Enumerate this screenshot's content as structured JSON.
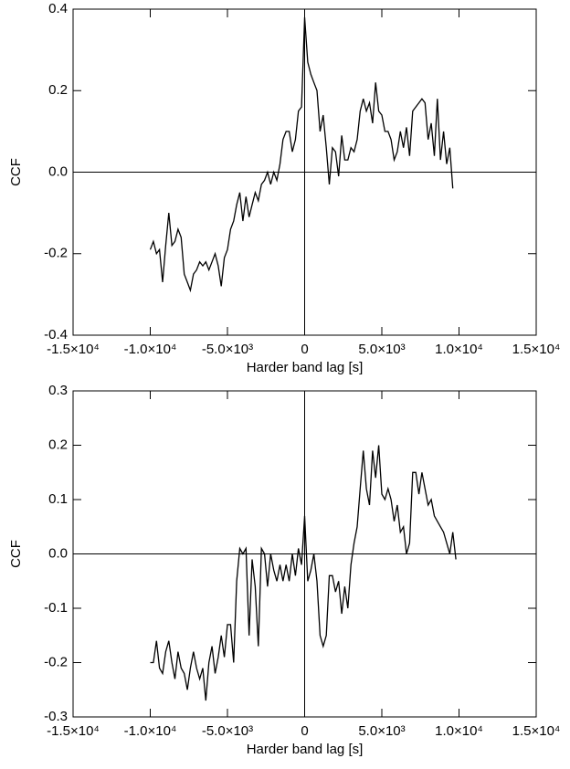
{
  "chart_data": [
    {
      "type": "line",
      "xlabel": "Harder band lag [s]",
      "ylabel": "CCF",
      "color": "#000000",
      "xlim": [
        -15000,
        15000
      ],
      "ylim": [
        -0.4,
        0.4
      ],
      "xticks": [
        {
          "value": -15000,
          "label": "-1.5×10⁴"
        },
        {
          "value": -10000,
          "label": "-1.0×10⁴"
        },
        {
          "value": -5000,
          "label": "-5.0×10³"
        },
        0,
        {
          "value": 5000,
          "label": "5.0×10³"
        },
        {
          "value": 10000,
          "label": "1.0×10⁴"
        },
        {
          "value": 15000,
          "label": "1.5×10⁴"
        }
      ],
      "yticks": [
        -0.4,
        -0.2,
        {
          "value": 0,
          "label": "0.0"
        },
        0.2,
        0.4
      ],
      "x": [
        -10000,
        -9800,
        -9600,
        -9400,
        -9200,
        -9000,
        -8800,
        -8600,
        -8400,
        -8200,
        -8000,
        -7800,
        -7600,
        -7400,
        -7200,
        -7000,
        -6800,
        -6600,
        -6400,
        -6200,
        -6000,
        -5800,
        -5600,
        -5400,
        -5200,
        -5000,
        -4800,
        -4600,
        -4400,
        -4200,
        -4000,
        -3800,
        -3600,
        -3400,
        -3200,
        -3000,
        -2800,
        -2600,
        -2400,
        -2200,
        -2000,
        -1800,
        -1600,
        -1400,
        -1200,
        -1000,
        -800,
        -600,
        -400,
        -200,
        0,
        200,
        400,
        600,
        800,
        1000,
        1200,
        1400,
        1600,
        1800,
        2000,
        2200,
        2400,
        2600,
        2800,
        3000,
        3200,
        3400,
        3600,
        3800,
        4000,
        4200,
        4400,
        4600,
        4800,
        5000,
        5200,
        5400,
        5600,
        5800,
        6000,
        6200,
        6400,
        6600,
        6800,
        7000,
        7200,
        7400,
        7600,
        7800,
        8000,
        8200,
        8400,
        8600,
        8800,
        9000,
        9200,
        9400,
        9600
      ],
      "values": [
        -0.19,
        -0.17,
        -0.2,
        -0.19,
        -0.27,
        -0.18,
        -0.1,
        -0.18,
        -0.17,
        -0.14,
        -0.16,
        -0.25,
        -0.27,
        -0.29,
        -0.25,
        -0.24,
        -0.22,
        -0.23,
        -0.22,
        -0.24,
        -0.22,
        -0.2,
        -0.23,
        -0.28,
        -0.21,
        -0.19,
        -0.14,
        -0.12,
        -0.08,
        -0.05,
        -0.12,
        -0.06,
        -0.11,
        -0.08,
        -0.05,
        -0.07,
        -0.03,
        -0.02,
        0.0,
        -0.03,
        0.0,
        -0.02,
        0.02,
        0.08,
        0.1,
        0.1,
        0.05,
        0.08,
        0.15,
        0.16,
        0.38,
        0.27,
        0.24,
        0.22,
        0.2,
        0.1,
        0.14,
        0.06,
        -0.03,
        0.06,
        0.05,
        -0.01,
        0.09,
        0.03,
        0.03,
        0.06,
        0.05,
        0.08,
        0.15,
        0.18,
        0.15,
        0.17,
        0.12,
        0.22,
        0.15,
        0.14,
        0.1,
        0.1,
        0.08,
        0.03,
        0.05,
        0.1,
        0.06,
        0.11,
        0.04,
        0.15,
        0.16,
        0.17,
        0.18,
        0.17,
        0.08,
        0.12,
        0.04,
        0.18,
        0.03,
        0.1,
        0.02,
        0.06,
        -0.04
      ]
    },
    {
      "type": "line",
      "xlabel": "Harder band lag [s]",
      "ylabel": "CCF",
      "color": "#000000",
      "xlim": [
        -15000,
        15000
      ],
      "ylim": [
        -0.3,
        0.3
      ],
      "xticks": [
        {
          "value": -15000,
          "label": "-1.5×10⁴"
        },
        {
          "value": -10000,
          "label": "-1.0×10⁴"
        },
        {
          "value": -5000,
          "label": "-5.0×10³"
        },
        0,
        {
          "value": 5000,
          "label": "5.0×10³"
        },
        {
          "value": 10000,
          "label": "1.0×10⁴"
        },
        {
          "value": 15000,
          "label": "1.5×10⁴"
        }
      ],
      "yticks": [
        -0.3,
        -0.2,
        -0.1,
        {
          "value": 0,
          "label": "0.0"
        },
        0.1,
        0.2,
        0.3
      ],
      "x": [
        -10000,
        -9800,
        -9600,
        -9400,
        -9200,
        -9000,
        -8800,
        -8600,
        -8400,
        -8200,
        -8000,
        -7800,
        -7600,
        -7400,
        -7200,
        -7000,
        -6800,
        -6600,
        -6400,
        -6200,
        -6000,
        -5800,
        -5600,
        -5400,
        -5200,
        -5000,
        -4800,
        -4600,
        -4400,
        -4200,
        -4000,
        -3800,
        -3600,
        -3400,
        -3200,
        -3000,
        -2800,
        -2600,
        -2400,
        -2200,
        -2000,
        -1800,
        -1600,
        -1400,
        -1200,
        -1000,
        -800,
        -600,
        -400,
        -200,
        0,
        200,
        400,
        600,
        800,
        1000,
        1200,
        1400,
        1600,
        1800,
        2000,
        2200,
        2400,
        2600,
        2800,
        3000,
        3200,
        3400,
        3600,
        3800,
        4000,
        4200,
        4400,
        4600,
        4800,
        5000,
        5200,
        5400,
        5600,
        5800,
        6000,
        6200,
        6400,
        6600,
        6800,
        7000,
        7200,
        7400,
        7600,
        7800,
        8000,
        8200,
        8400,
        8600,
        8800,
        9000,
        9200,
        9400,
        9600,
        9800
      ],
      "values": [
        -0.2,
        -0.2,
        -0.16,
        -0.21,
        -0.22,
        -0.18,
        -0.16,
        -0.2,
        -0.23,
        -0.18,
        -0.21,
        -0.22,
        -0.25,
        -0.21,
        -0.18,
        -0.21,
        -0.23,
        -0.21,
        -0.27,
        -0.2,
        -0.17,
        -0.22,
        -0.19,
        -0.15,
        -0.19,
        -0.13,
        -0.13,
        -0.2,
        -0.05,
        0.01,
        0.0,
        0.01,
        -0.15,
        -0.01,
        -0.06,
        -0.17,
        0.01,
        0.0,
        -0.06,
        0.0,
        -0.03,
        -0.05,
        -0.02,
        -0.05,
        -0.02,
        -0.05,
        0.0,
        -0.04,
        0.01,
        -0.02,
        0.07,
        -0.05,
        -0.03,
        0.0,
        -0.05,
        -0.15,
        -0.17,
        -0.15,
        -0.04,
        -0.04,
        -0.07,
        -0.05,
        -0.11,
        -0.06,
        -0.1,
        -0.02,
        0.02,
        0.05,
        0.12,
        0.19,
        0.12,
        0.09,
        0.19,
        0.14,
        0.2,
        0.11,
        0.1,
        0.12,
        0.1,
        0.06,
        0.09,
        0.04,
        0.05,
        0.0,
        0.02,
        0.15,
        0.15,
        0.11,
        0.15,
        0.12,
        0.09,
        0.1,
        0.07,
        0.06,
        0.05,
        0.04,
        0.02,
        0.0,
        0.04,
        -0.01
      ]
    }
  ]
}
